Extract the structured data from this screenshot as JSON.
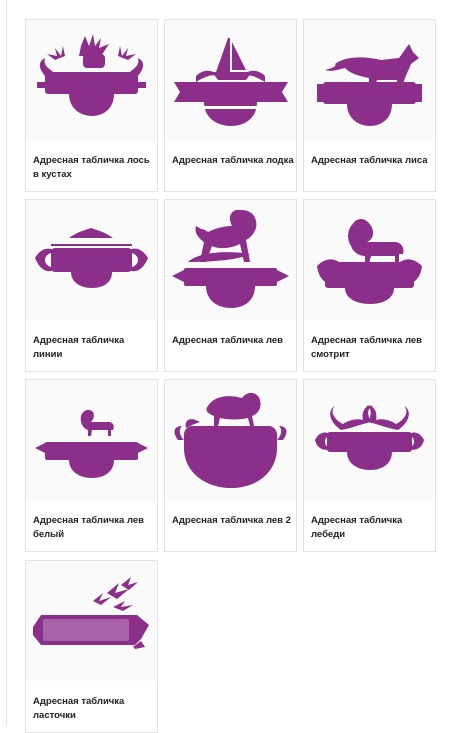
{
  "theme": {
    "accent": "#8b2f8b"
  },
  "products": [
    {
      "title": "Адресная табличка лось в кустах",
      "icon": "moose-bushes-sign-icon"
    },
    {
      "title": "Адресная табличка лодка",
      "icon": "boat-sign-icon"
    },
    {
      "title": "Адресная табличка лиса",
      "icon": "fox-sign-icon"
    },
    {
      "title": "Адресная табличка линии",
      "icon": "lines-sign-icon"
    },
    {
      "title": "Адресная табличка лев",
      "icon": "lion-rock-sign-icon"
    },
    {
      "title": "Адресная табличка лев смотрит",
      "icon": "lion-looking-sign-icon"
    },
    {
      "title": "Адресная табличка лев белый",
      "icon": "white-lion-sign-icon"
    },
    {
      "title": "Адресная табличка лев 2",
      "icon": "lion-2-sign-icon"
    },
    {
      "title": "Адресная табличка лебеди",
      "icon": "swans-sign-icon"
    },
    {
      "title": "Адресная табличка ласточки",
      "icon": "swallows-sign-icon"
    }
  ]
}
